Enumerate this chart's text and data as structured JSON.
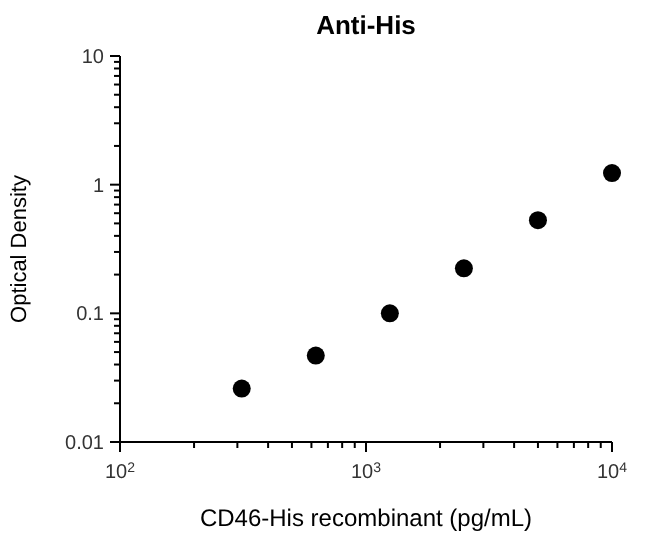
{
  "chart_data": {
    "type": "scatter",
    "title": "Anti-His",
    "xlabel": "CD46-His recombinant (pg/mL)",
    "ylabel": "Optical Density",
    "x": [
      312.5,
      625,
      1250,
      2500,
      5000,
      10000
    ],
    "series": [
      {
        "color": "#000000",
        "values": [
          0.026,
          0.047,
          0.1,
          0.224,
          0.53,
          1.23
        ]
      }
    ],
    "log": "xy",
    "marker": "circle",
    "grid": false,
    "xlim": [
      100,
      10000
    ],
    "xticks": [
      {
        "value": 100,
        "label": "10$^{2}$"
      },
      {
        "value": 200,
        "label": null
      },
      {
        "value": 300,
        "label": null
      },
      {
        "value": 400,
        "label": null
      },
      {
        "value": 500,
        "label": null
      },
      {
        "value": 600,
        "label": null
      },
      {
        "value": 700,
        "label": null
      },
      {
        "value": 800,
        "label": null
      },
      {
        "value": 900,
        "label": null
      },
      {
        "value": 1000,
        "label": "10$^{3}$"
      },
      {
        "value": 2000,
        "label": null
      },
      {
        "value": 3000,
        "label": null
      },
      {
        "value": 4000,
        "label": null
      },
      {
        "value": 5000,
        "label": null
      },
      {
        "value": 6000,
        "label": null
      },
      {
        "value": 7000,
        "label": null
      },
      {
        "value": 8000,
        "label": null
      },
      {
        "value": 9000,
        "label": null
      },
      {
        "value": 10000,
        "label": "10$^{4}$"
      }
    ],
    "ylim": [
      0.01,
      10
    ],
    "yticks": [
      0.01,
      {
        "value": 0.02,
        "label": null
      },
      {
        "value": 0.03,
        "label": null
      },
      {
        "value": 0.04,
        "label": null
      },
      {
        "value": 0.05,
        "label": null
      },
      {
        "value": 0.06,
        "label": null
      },
      {
        "value": 0.07,
        "label": null
      },
      {
        "value": 0.08,
        "label": null
      },
      {
        "value": 0.09,
        "label": null
      },
      0.1,
      {
        "value": 0.2,
        "label": null
      },
      {
        "value": 0.3,
        "label": null
      },
      {
        "value": 0.4,
        "label": null
      },
      {
        "value": 0.5,
        "label": null
      },
      {
        "value": 0.6,
        "label": null
      },
      {
        "value": 0.7,
        "label": null
      },
      {
        "value": 0.8,
        "label": null
      },
      {
        "value": 0.9,
        "label": null
      },
      1,
      {
        "value": 2,
        "label": null
      },
      {
        "value": 3,
        "label": null
      },
      {
        "value": 4,
        "label": null
      },
      {
        "value": 5,
        "label": null
      },
      {
        "value": 6,
        "label": null
      },
      {
        "value": 7,
        "label": null
      },
      {
        "value": 8,
        "label": null
      },
      {
        "value": 9,
        "label": null
      },
      10
    ]
  }
}
